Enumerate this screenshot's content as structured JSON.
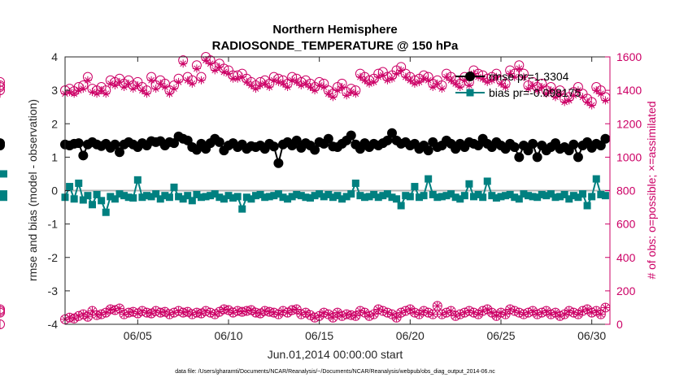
{
  "chart_data": {
    "type": "line",
    "title_line1": "Northern Hemisphere",
    "title_line2": "RADIOSONDE_TEMPERATURE @ 150 hPa",
    "ylabel_left": "rmse and bias (model - observation)",
    "ylabel_right": "# of obs: o=possible; ×=assimilated",
    "xlabel": "Jun.01,2014 00:00:00 start",
    "footer": "data file: /Users/gharamti/Documents/NCAR/Reanalysis/~/Documents/NCAR/Reanalysis/webpub/obs_diag_output_2014-06.nc",
    "xlim": [
      1,
      31
    ],
    "ylim_left": [
      -4,
      4
    ],
    "ylim_right": [
      0,
      1600
    ],
    "xticks": [
      5,
      10,
      15,
      20,
      25,
      30
    ],
    "xtick_labels": [
      "06/05",
      "06/10",
      "06/15",
      "06/20",
      "06/25",
      "06/30"
    ],
    "yticks_left": [
      -4,
      -3,
      -2,
      -1,
      0,
      1,
      2,
      3,
      4
    ],
    "ytick_labels_left": [
      "-4",
      "-3",
      "-2",
      "-1",
      "0",
      "1",
      "2",
      "3",
      "4"
    ],
    "yticks_right": [
      0,
      200,
      400,
      600,
      800,
      1000,
      1200,
      1400,
      1600
    ],
    "ytick_labels_right": [
      "0",
      "200",
      "400",
      "600",
      "800",
      "1000",
      "1200",
      "1400",
      "1600"
    ],
    "legend": [
      {
        "name": "rmse pr=1.3304",
        "color": "#000000",
        "marker": "circle"
      },
      {
        "name": "bias pr=-0.098175",
        "color": "#008080",
        "marker": "square"
      }
    ],
    "colors": {
      "rmse": "#000000",
      "bias": "#008080",
      "counts": "#cc0066",
      "zero": "#b3b3b3"
    },
    "x": [
      1.0,
      1.25,
      1.5,
      1.75,
      2.0,
      2.25,
      2.5,
      2.75,
      3.0,
      3.25,
      3.5,
      3.75,
      4.0,
      4.25,
      4.5,
      4.75,
      5.0,
      5.25,
      5.5,
      5.75,
      6.0,
      6.25,
      6.5,
      6.75,
      7.0,
      7.25,
      7.5,
      7.75,
      8.0,
      8.25,
      8.5,
      8.75,
      9.0,
      9.25,
      9.5,
      9.75,
      10.0,
      10.25,
      10.5,
      10.75,
      11.0,
      11.25,
      11.5,
      11.75,
      12.0,
      12.25,
      12.5,
      12.75,
      13.0,
      13.25,
      13.5,
      13.75,
      14.0,
      14.25,
      14.5,
      14.75,
      15.0,
      15.25,
      15.5,
      15.75,
      16.0,
      16.25,
      16.5,
      16.75,
      17.0,
      17.25,
      17.5,
      17.75,
      18.0,
      18.25,
      18.5,
      18.75,
      19.0,
      19.25,
      19.5,
      19.75,
      20.0,
      20.25,
      20.5,
      20.75,
      21.0,
      21.25,
      21.5,
      21.75,
      22.0,
      22.25,
      22.5,
      22.75,
      23.0,
      23.25,
      23.5,
      23.75,
      24.0,
      24.25,
      24.5,
      24.75,
      25.0,
      25.25,
      25.5,
      25.75,
      26.0,
      26.25,
      26.5,
      26.75,
      27.0,
      27.25,
      27.5,
      27.75,
      28.0,
      28.25,
      28.5,
      28.75,
      29.0,
      29.25,
      29.5,
      29.75,
      30.0,
      30.25,
      30.5,
      30.75
    ],
    "rmse": [
      1.38,
      1.35,
      1.4,
      1.42,
      1.05,
      1.38,
      1.45,
      1.38,
      1.33,
      1.4,
      1.28,
      1.38,
      1.15,
      1.38,
      1.45,
      1.38,
      1.3,
      1.42,
      1.35,
      1.48,
      1.45,
      1.48,
      1.35,
      1.45,
      1.42,
      1.62,
      1.55,
      1.5,
      1.3,
      1.22,
      1.4,
      1.25,
      1.42,
      1.55,
      1.45,
      1.2,
      1.35,
      1.42,
      1.3,
      1.38,
      1.25,
      1.33,
      1.3,
      1.35,
      1.25,
      1.4,
      1.32,
      0.82,
      1.38,
      1.45,
      1.35,
      1.5,
      1.28,
      1.42,
      1.35,
      1.22,
      1.45,
      1.4,
      1.55,
      1.32,
      1.3,
      1.4,
      1.5,
      1.65,
      1.38,
      1.25,
      1.42,
      1.3,
      1.4,
      1.35,
      1.42,
      1.5,
      1.72,
      1.5,
      1.4,
      1.45,
      1.35,
      1.4,
      1.25,
      1.35,
      1.2,
      1.45,
      1.3,
      1.35,
      1.5,
      1.4,
      1.25,
      1.4,
      1.3,
      1.45,
      1.4,
      1.35,
      1.55,
      1.4,
      1.3,
      1.45,
      1.35,
      1.25,
      1.4,
      1.3,
      1.0,
      1.35,
      1.2,
      1.4,
      1.0,
      1.35,
      1.2,
      1.3,
      1.42,
      1.25,
      1.3,
      1.2,
      1.38,
      1.0,
      1.35,
      1.45,
      1.28,
      1.4,
      1.35,
      1.55,
      1.38,
      1.35,
      1.42,
      1.4
    ],
    "bias": [
      -0.2,
      0.12,
      -0.25,
      0.22,
      -0.28,
      -0.15,
      -0.42,
      -0.12,
      -0.3,
      -0.65,
      -0.18,
      -0.25,
      -0.1,
      -0.15,
      -0.2,
      -0.22,
      0.32,
      -0.2,
      -0.15,
      -0.18,
      -0.1,
      -0.25,
      -0.15,
      -0.2,
      0.1,
      -0.18,
      -0.25,
      -0.15,
      -0.3,
      -0.12,
      -0.2,
      -0.18,
      -0.15,
      -0.1,
      -0.2,
      -0.25,
      -0.15,
      -0.22,
      -0.18,
      -0.55,
      -0.2,
      -0.25,
      -0.15,
      -0.12,
      -0.2,
      -0.18,
      -0.15,
      -0.1,
      -0.2,
      -0.25,
      -0.18,
      -0.12,
      -0.15,
      -0.2,
      -0.22,
      -0.15,
      -0.1,
      -0.18,
      -0.12,
      -0.2,
      -0.15,
      -0.25,
      -0.18,
      -0.1,
      0.22,
      -0.15,
      -0.2,
      -0.18,
      -0.12,
      -0.2,
      -0.15,
      -0.1,
      -0.2,
      -0.25,
      -0.45,
      -0.15,
      -0.18,
      0.12,
      -0.2,
      -0.15,
      0.35,
      -0.12,
      -0.2,
      -0.18,
      -0.15,
      -0.1,
      -0.2,
      -0.25,
      -0.15,
      0.2,
      -0.18,
      -0.12,
      -0.2,
      0.28,
      -0.15,
      -0.22,
      -0.18,
      -0.15,
      -0.12,
      -0.2,
      -0.25,
      -0.1,
      -0.15,
      -0.18,
      -0.2,
      -0.12,
      -0.15,
      -0.1,
      -0.2,
      -0.18,
      -0.12,
      -0.25,
      -0.15,
      -0.2,
      -0.1,
      -0.45,
      -0.18,
      0.35,
      -0.12,
      -0.15,
      -0.2,
      -0.1,
      -0.12,
      0.5
    ],
    "possible": [
      1400,
      1410,
      1395,
      1420,
      1430,
      1480,
      1410,
      1400,
      1420,
      1400,
      1460,
      1450,
      1470,
      1440,
      1460,
      1430,
      1450,
      1420,
      1400,
      1480,
      1430,
      1460,
      1440,
      1400,
      1430,
      1470,
      1580,
      1480,
      1460,
      1550,
      1480,
      1600,
      1580,
      1540,
      1560,
      1530,
      1520,
      1490,
      1490,
      1500,
      1470,
      1450,
      1430,
      1450,
      1460,
      1440,
      1480,
      1470,
      1460,
      1440,
      1480,
      1470,
      1450,
      1460,
      1440,
      1420,
      1450,
      1440,
      1400,
      1380,
      1420,
      1440,
      1390,
      1410,
      1400,
      1500,
      1480,
      1460,
      1470,
      1500,
      1510,
      1480,
      1490,
      1520,
      1540,
      1500,
      1480,
      1460,
      1470,
      1490,
      1480,
      1440,
      1460,
      1430,
      1500,
      1480,
      1460,
      1440,
      1480,
      1450,
      1520,
      1500,
      1490,
      1470,
      1480,
      1500,
      1460,
      1440,
      1520,
      1500,
      1550,
      1500,
      1430,
      1450,
      1420,
      1440,
      1400,
      1420,
      1380,
      1400,
      1350,
      1360,
      1390,
      1420,
      1380,
      1350,
      1330,
      1420,
      1400,
      1360,
      1400,
      1420,
      1430,
      1450
    ],
    "assimilated": [
      1380,
      1390,
      1380,
      1400,
      1410,
      1460,
      1390,
      1380,
      1400,
      1380,
      1440,
      1430,
      1450,
      1420,
      1440,
      1410,
      1430,
      1400,
      1380,
      1460,
      1410,
      1440,
      1420,
      1380,
      1410,
      1450,
      1560,
      1460,
      1440,
      1530,
      1460,
      1580,
      1560,
      1520,
      1540,
      1510,
      1500,
      1470,
      1470,
      1480,
      1450,
      1430,
      1410,
      1430,
      1440,
      1420,
      1460,
      1450,
      1440,
      1420,
      1460,
      1450,
      1430,
      1440,
      1420,
      1400,
      1430,
      1420,
      1380,
      1360,
      1400,
      1420,
      1370,
      1390,
      1380,
      1480,
      1460,
      1440,
      1450,
      1480,
      1490,
      1460,
      1470,
      1500,
      1520,
      1480,
      1460,
      1440,
      1450,
      1470,
      1460,
      1420,
      1440,
      1410,
      1480,
      1460,
      1440,
      1420,
      1460,
      1430,
      1500,
      1480,
      1470,
      1450,
      1460,
      1480,
      1440,
      1420,
      1500,
      1480,
      1530,
      1480,
      1410,
      1430,
      1400,
      1420,
      1380,
      1400,
      1360,
      1380,
      1330,
      1340,
      1370,
      1400,
      1360,
      1330,
      1310,
      1400,
      1380,
      1340,
      1380,
      1400,
      1410,
      1430
    ],
    "possible_low": [
      30,
      40,
      35,
      50,
      60,
      45,
      80,
      55,
      60,
      70,
      90,
      85,
      95,
      60,
      70,
      75,
      65,
      80,
      70,
      65,
      80,
      70,
      75,
      60,
      70,
      80,
      70,
      75,
      60,
      70,
      65,
      80,
      70,
      60,
      75,
      90,
      85,
      70,
      80,
      75,
      80,
      85,
      70,
      65,
      80,
      75,
      70,
      60,
      80,
      70,
      85,
      90,
      60,
      70,
      55,
      40,
      50,
      70,
      60,
      40,
      70,
      50,
      60,
      55,
      50,
      80,
      70,
      50,
      60,
      90,
      80,
      70,
      60,
      40,
      70,
      80,
      90,
      70,
      60,
      80,
      70,
      60,
      110,
      60,
      70,
      80,
      50,
      60,
      70,
      80,
      70,
      60,
      80,
      90,
      70,
      50,
      70,
      60,
      90,
      80,
      70,
      60,
      70,
      80,
      60,
      70,
      80,
      60,
      70,
      50,
      60,
      80,
      70,
      60,
      80,
      90,
      70,
      80,
      60,
      100,
      70,
      80,
      90,
      0
    ],
    "assimilated_low": [
      30,
      40,
      35,
      50,
      60,
      45,
      80,
      55,
      60,
      70,
      90,
      85,
      95,
      60,
      70,
      75,
      65,
      80,
      70,
      65,
      80,
      70,
      75,
      60,
      70,
      80,
      70,
      75,
      60,
      70,
      65,
      80,
      70,
      60,
      75,
      90,
      85,
      70,
      80,
      75,
      80,
      85,
      70,
      65,
      80,
      75,
      70,
      60,
      80,
      70,
      85,
      90,
      60,
      70,
      55,
      40,
      50,
      70,
      60,
      40,
      70,
      50,
      60,
      55,
      50,
      80,
      70,
      50,
      60,
      90,
      80,
      70,
      60,
      40,
      70,
      80,
      90,
      70,
      60,
      80,
      70,
      60,
      110,
      60,
      70,
      80,
      50,
      60,
      70,
      80,
      70,
      60,
      80,
      90,
      70,
      50,
      70,
      60,
      90,
      80,
      70,
      60,
      70,
      80,
      60,
      70,
      80,
      60,
      70,
      50,
      60,
      80,
      70,
      60,
      80,
      90,
      70,
      80,
      60,
      100,
      70,
      80,
      90,
      0
    ]
  }
}
